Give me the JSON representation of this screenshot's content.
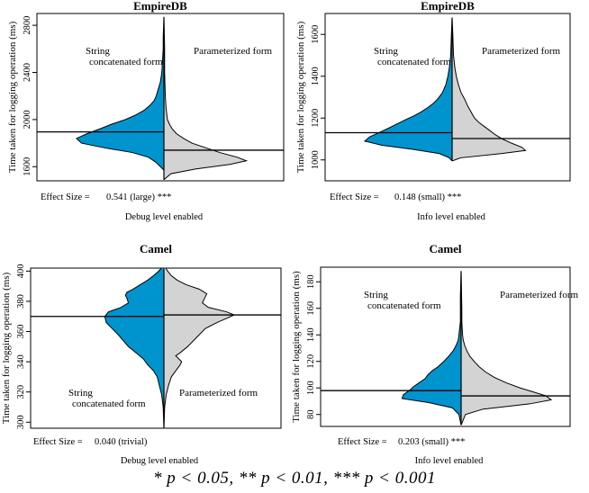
{
  "colors": {
    "left_half": "#0094cf",
    "right_half": "#d3d3d3",
    "outline": "#000000"
  },
  "significance_note": "* p < 0.05, ** p < 0.01, *** p < 0.001",
  "chart_data": [
    {
      "type": "violin",
      "title": "EmpireDB",
      "ylabel": "Time taken for logging operation (ms)",
      "xlabel": "Debug level enabled",
      "effect_size_label": "Effect Size =",
      "effect_size": "0.541 (large) ***",
      "yticks": [
        1600,
        2000,
        2400,
        2800
      ],
      "ylim": [
        1480,
        2900
      ],
      "series": [
        {
          "name": "String\nconcatenated form",
          "side": "left",
          "mean": 1895,
          "min": 1570,
          "max": 2870,
          "profile": [
            [
              1570,
              0
            ],
            [
              1600,
              5
            ],
            [
              1640,
              12
            ],
            [
              1680,
              22
            ],
            [
              1720,
              45
            ],
            [
              1760,
              85
            ],
            [
              1800,
              118
            ],
            [
              1840,
              125
            ],
            [
              1880,
              110
            ],
            [
              1920,
              92
            ],
            [
              1960,
              75
            ],
            [
              2000,
              55
            ],
            [
              2040,
              40
            ],
            [
              2080,
              28
            ],
            [
              2120,
              20
            ],
            [
              2160,
              14
            ],
            [
              2200,
              11
            ],
            [
              2240,
              9
            ],
            [
              2280,
              7
            ],
            [
              2320,
              5
            ],
            [
              2400,
              3
            ],
            [
              2500,
              2
            ],
            [
              2600,
              1
            ],
            [
              2700,
              1
            ],
            [
              2870,
              0
            ]
          ]
        },
        {
          "name": "Parameterized form",
          "side": "right",
          "mean": 1740,
          "min": 1490,
          "max": 2870,
          "profile": [
            [
              1490,
              0
            ],
            [
              1540,
              10
            ],
            [
              1580,
              45
            ],
            [
              1620,
              95
            ],
            [
              1650,
              118
            ],
            [
              1680,
              105
            ],
            [
              1720,
              80
            ],
            [
              1760,
              60
            ],
            [
              1800,
              40
            ],
            [
              1840,
              28
            ],
            [
              1880,
              18
            ],
            [
              1920,
              12
            ],
            [
              1960,
              8
            ],
            [
              2000,
              5
            ],
            [
              2100,
              3
            ],
            [
              2200,
              2
            ],
            [
              2400,
              1
            ],
            [
              2600,
              1
            ],
            [
              2870,
              0
            ]
          ]
        }
      ]
    },
    {
      "type": "violin",
      "title": "EmpireDB",
      "ylabel": "Time taken for logging operation (ms)",
      "xlabel": "Info level enabled",
      "effect_size_label": "Effect Size =",
      "effect_size": "0.148 (small) ***",
      "yticks": [
        1000,
        1200,
        1400,
        1600
      ],
      "ylim": [
        900,
        1700
      ],
      "series": [
        {
          "name": "String\nconcatenated form",
          "side": "left",
          "mean": 1130,
          "min": 995,
          "max": 1680,
          "profile": [
            [
              995,
              0
            ],
            [
              1010,
              4
            ],
            [
              1030,
              18
            ],
            [
              1050,
              55
            ],
            [
              1070,
              100
            ],
            [
              1090,
              125
            ],
            [
              1110,
              118
            ],
            [
              1130,
              105
            ],
            [
              1150,
              92
            ],
            [
              1170,
              80
            ],
            [
              1190,
              68
            ],
            [
              1210,
              55
            ],
            [
              1230,
              44
            ],
            [
              1250,
              35
            ],
            [
              1270,
              27
            ],
            [
              1290,
              21
            ],
            [
              1320,
              14
            ],
            [
              1360,
              9
            ],
            [
              1400,
              6
            ],
            [
              1440,
              4
            ],
            [
              1500,
              2
            ],
            [
              1600,
              1
            ],
            [
              1680,
              0
            ]
          ]
        },
        {
          "name": "Parameterized form",
          "side": "right",
          "mean": 1102,
          "min": 995,
          "max": 1680,
          "profile": [
            [
              995,
              0
            ],
            [
              1010,
              12
            ],
            [
              1030,
              70
            ],
            [
              1045,
              105
            ],
            [
              1060,
              100
            ],
            [
              1080,
              85
            ],
            [
              1100,
              72
            ],
            [
              1120,
              62
            ],
            [
              1140,
              54
            ],
            [
              1160,
              46
            ],
            [
              1180,
              38
            ],
            [
              1200,
              32
            ],
            [
              1230,
              27
            ],
            [
              1260,
              22
            ],
            [
              1290,
              18
            ],
            [
              1320,
              13
            ],
            [
              1360,
              9
            ],
            [
              1400,
              6
            ],
            [
              1440,
              4
            ],
            [
              1500,
              2
            ],
            [
              1600,
              1
            ],
            [
              1680,
              0
            ]
          ]
        }
      ]
    },
    {
      "type": "violin",
      "title": "Camel",
      "ylabel": "Time taken for logging operation (ms)",
      "xlabel": "Debug level enabled",
      "effect_size_label": "Effect Size =",
      "effect_size": "0.040 (trivial)",
      "yticks": [
        300,
        320,
        340,
        360,
        380,
        400
      ],
      "ylim": [
        296,
        402
      ],
      "series": [
        {
          "name": "String\nconcatenated form",
          "side": "left",
          "mean": 370,
          "min": 296,
          "max": 404,
          "profile": [
            [
              296,
              0
            ],
            [
              310,
              1
            ],
            [
              318,
              3
            ],
            [
              324,
              6
            ],
            [
              330,
              9
            ],
            [
              334,
              14
            ],
            [
              338,
              22
            ],
            [
              342,
              28
            ],
            [
              346,
              38
            ],
            [
              350,
              48
            ],
            [
              354,
              55
            ],
            [
              358,
              62
            ],
            [
              362,
              70
            ],
            [
              366,
              78
            ],
            [
              370,
              80
            ],
            [
              373,
              75
            ],
            [
              376,
              58
            ],
            [
              379,
              48
            ],
            [
              382,
              50
            ],
            [
              384,
              52
            ],
            [
              386,
              50
            ],
            [
              388,
              42
            ],
            [
              391,
              32
            ],
            [
              394,
              22
            ],
            [
              397,
              14
            ],
            [
              400,
              7
            ],
            [
              404,
              0
            ]
          ]
        },
        {
          "name": "Parameterized form",
          "side": "right",
          "mean": 371,
          "min": 296,
          "max": 404,
          "profile": [
            [
              296,
              0
            ],
            [
              310,
              1
            ],
            [
              318,
              3
            ],
            [
              324,
              6
            ],
            [
              330,
              10
            ],
            [
              334,
              16
            ],
            [
              338,
              22
            ],
            [
              340,
              24
            ],
            [
              342,
              20
            ],
            [
              344,
              16
            ],
            [
              346,
              22
            ],
            [
              350,
              32
            ],
            [
              354,
              40
            ],
            [
              358,
              48
            ],
            [
              362,
              56
            ],
            [
              366,
              72
            ],
            [
              369,
              86
            ],
            [
              371,
              95
            ],
            [
              373,
              85
            ],
            [
              376,
              60
            ],
            [
              379,
              52
            ],
            [
              382,
              55
            ],
            [
              385,
              58
            ],
            [
              388,
              48
            ],
            [
              391,
              30
            ],
            [
              394,
              18
            ],
            [
              397,
              10
            ],
            [
              400,
              5
            ],
            [
              404,
              0
            ]
          ]
        }
      ]
    },
    {
      "type": "violin",
      "title": "Camel",
      "ylabel": "Time taken for logging operation (ms)",
      "xlabel": "Info level enabled",
      "effect_size_label": "Effect Size =",
      "effect_size": "0.203 (small) ***",
      "yticks": [
        80,
        100,
        120,
        140,
        160,
        180
      ],
      "ylim": [
        71,
        191
      ],
      "series": [
        {
          "name": "String\nconcatenated form",
          "side": "left",
          "mean": 98,
          "min": 72,
          "max": 188,
          "profile": [
            [
              72,
              0
            ],
            [
              80,
              3
            ],
            [
              85,
              12
            ],
            [
              89,
              45
            ],
            [
              92,
              82
            ],
            [
              95,
              80
            ],
            [
              98,
              72
            ],
            [
              101,
              66
            ],
            [
              104,
              58
            ],
            [
              107,
              50
            ],
            [
              110,
              46
            ],
            [
              113,
              40
            ],
            [
              116,
              32
            ],
            [
              120,
              24
            ],
            [
              124,
              17
            ],
            [
              128,
              11
            ],
            [
              132,
              7
            ],
            [
              136,
              4
            ],
            [
              140,
              3
            ],
            [
              150,
              1
            ],
            [
              160,
              1
            ],
            [
              170,
              1
            ],
            [
              188,
              0
            ]
          ]
        },
        {
          "name": "Parameterized form",
          "side": "right",
          "mean": 94,
          "min": 72,
          "max": 188,
          "profile": [
            [
              72,
              0
            ],
            [
              80,
              6
            ],
            [
              84,
              30
            ],
            [
              88,
              95
            ],
            [
              91,
              125
            ],
            [
              94,
              118
            ],
            [
              97,
              100
            ],
            [
              100,
              82
            ],
            [
              104,
              62
            ],
            [
              108,
              46
            ],
            [
              112,
              34
            ],
            [
              116,
              25
            ],
            [
              120,
              18
            ],
            [
              124,
              12
            ],
            [
              128,
              8
            ],
            [
              132,
              5
            ],
            [
              136,
              3
            ],
            [
              140,
              2
            ],
            [
              150,
              1
            ],
            [
              160,
              1
            ],
            [
              188,
              0
            ]
          ]
        }
      ]
    }
  ]
}
